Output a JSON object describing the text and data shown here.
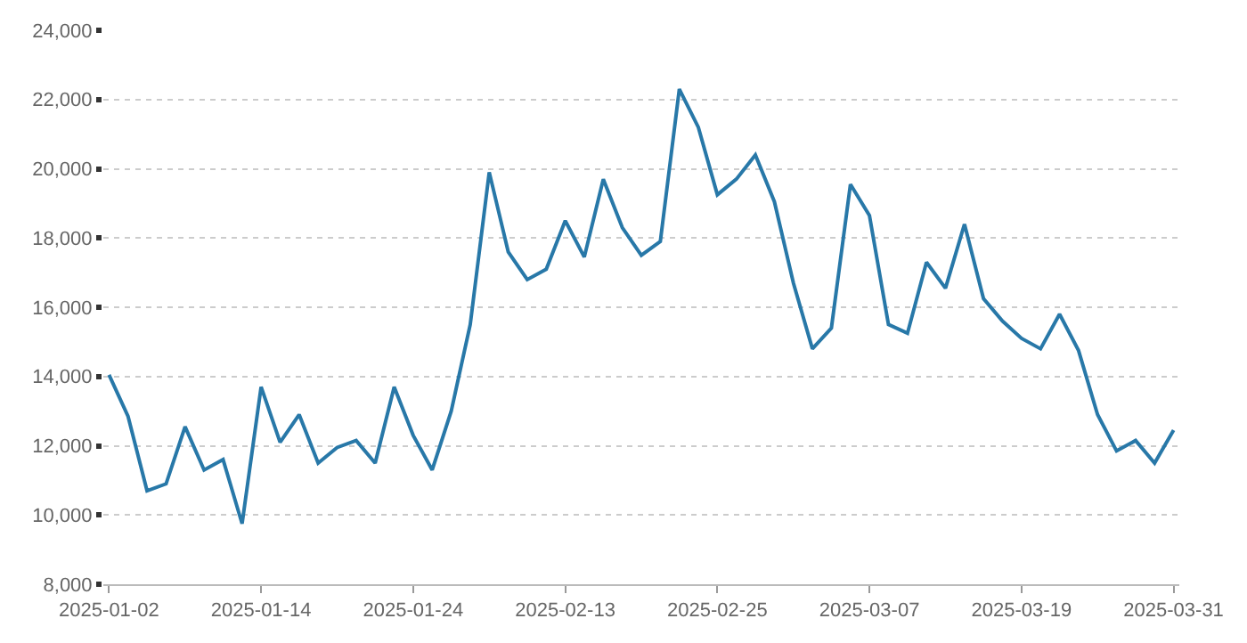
{
  "chart_data": {
    "type": "line",
    "categories": [
      "2025-01-02",
      null,
      null,
      null,
      null,
      null,
      null,
      null,
      "2025-01-14",
      null,
      null,
      null,
      null,
      null,
      null,
      null,
      "2025-01-24",
      null,
      null,
      null,
      null,
      null,
      null,
      null,
      "2025-02-13",
      null,
      null,
      null,
      null,
      null,
      null,
      null,
      "2025-02-25",
      null,
      null,
      null,
      null,
      null,
      null,
      null,
      "2025-03-07",
      null,
      null,
      null,
      null,
      null,
      null,
      null,
      "2025-03-19",
      null,
      null,
      null,
      null,
      null,
      null,
      null,
      "2025-03-31"
    ],
    "series": [
      {
        "color": "#2878a8",
        "values": [
          14050,
          12850,
          10700,
          10900,
          12550,
          11300,
          11600,
          9750,
          13700,
          12100,
          12900,
          11500,
          11950,
          12150,
          11500,
          13700,
          12300,
          11300,
          13000,
          15500,
          19900,
          17600,
          16800,
          17100,
          18500,
          17450,
          19700,
          18300,
          17500,
          17900,
          22300,
          21200,
          19250,
          19700,
          20400,
          19050,
          16700,
          14800,
          15400,
          19550,
          18650,
          15500,
          15250,
          17300,
          16550,
          18400,
          16250,
          15600,
          15100,
          14800,
          15800,
          14750,
          12900,
          11850,
          12150,
          11500,
          12450
        ]
      }
    ],
    "ylim": [
      8000,
      24000
    ],
    "yticks": [
      {
        "value": 8000,
        "label": "8,000"
      },
      {
        "value": 10000,
        "label": "10,000"
      },
      {
        "value": 12000,
        "label": "12,000"
      },
      {
        "value": 14000,
        "label": "14,000"
      },
      {
        "value": 16000,
        "label": "16,000"
      },
      {
        "value": 18000,
        "label": "18,000"
      },
      {
        "value": 20000,
        "label": "20,000"
      },
      {
        "value": 22000,
        "label": "22,000"
      },
      {
        "value": 24000,
        "label": "24,000"
      }
    ],
    "grid": "y",
    "marker": "none",
    "line_style": "solid"
  }
}
